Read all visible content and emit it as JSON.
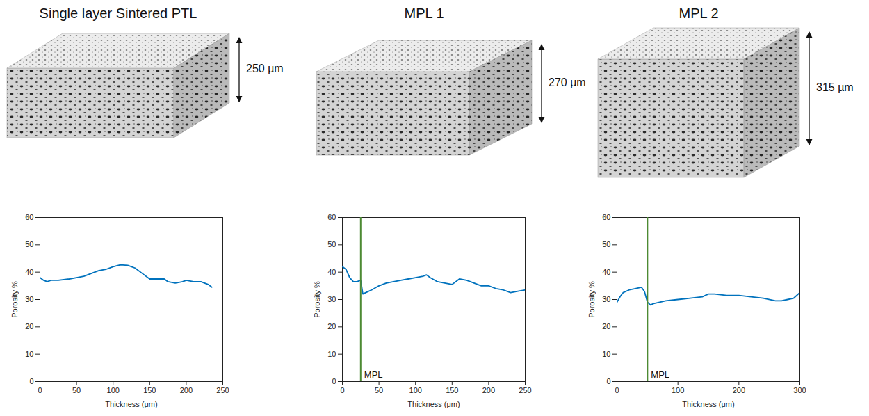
{
  "chart_data": [
    {
      "type": "line",
      "title": "Single layer Sintered PTL",
      "sample_thickness_label": "250 µm",
      "xlabel": "Thickness (μm)",
      "ylabel": "Porosity %",
      "x": [
        0,
        5,
        10,
        15,
        25,
        40,
        50,
        60,
        70,
        80,
        90,
        100,
        110,
        120,
        130,
        140,
        150,
        160,
        170,
        175,
        185,
        195,
        200,
        210,
        220,
        230,
        235
      ],
      "values": [
        38,
        37,
        36.5,
        37,
        37,
        37.5,
        38,
        38.5,
        39.5,
        40.5,
        41,
        42,
        42.7,
        42.5,
        41.5,
        39.5,
        37.5,
        37.5,
        37.5,
        36.5,
        36,
        36.5,
        37,
        36.5,
        36.5,
        35.5,
        34.5
      ],
      "color": "#0072bd",
      "xlim": [
        0,
        250
      ],
      "xticks": [
        0,
        50,
        100,
        150,
        200,
        250
      ],
      "ylim": [
        0,
        60
      ],
      "yticks": [
        0,
        10,
        20,
        30,
        40,
        50,
        60
      ],
      "annotations": []
    },
    {
      "type": "line",
      "title": "MPL 1",
      "sample_thickness_label": "270 µm",
      "xlabel": "Thickness (μm)",
      "ylabel": "Porosity %",
      "x": [
        0,
        5,
        10,
        15,
        20,
        25,
        28,
        32,
        40,
        50,
        60,
        70,
        80,
        90,
        100,
        110,
        115,
        120,
        130,
        140,
        150,
        160,
        170,
        180,
        190,
        200,
        210,
        220,
        230,
        240,
        250
      ],
      "values": [
        42,
        41,
        38,
        36.5,
        36.5,
        37,
        32,
        32.5,
        33.5,
        35,
        36,
        36.5,
        37,
        37.5,
        38,
        38.5,
        39,
        38,
        36.5,
        36,
        35.5,
        37.5,
        37,
        36,
        35,
        35,
        34,
        33.5,
        32.5,
        33,
        33.5
      ],
      "color": "#0072bd",
      "xlim": [
        0,
        250
      ],
      "xticks": [
        0,
        50,
        100,
        150,
        200,
        250
      ],
      "ylim": [
        0,
        60
      ],
      "yticks": [
        0,
        10,
        20,
        30,
        40,
        50,
        60
      ],
      "annotations": [
        {
          "text": "MPL",
          "x": 25,
          "color": "#4d8a33"
        }
      ]
    },
    {
      "type": "line",
      "title": "MPL 2",
      "sample_thickness_label": "315 µm",
      "xlabel": "Thickness (μm)",
      "ylabel": "Porosity %",
      "x": [
        0,
        5,
        10,
        20,
        30,
        40,
        45,
        50,
        55,
        60,
        70,
        80,
        100,
        120,
        140,
        150,
        160,
        180,
        200,
        220,
        240,
        260,
        270,
        280,
        290,
        300
      ],
      "values": [
        29,
        31,
        32.5,
        33.5,
        34,
        34.5,
        33,
        29,
        28,
        28.5,
        29,
        29.5,
        30,
        30.5,
        31,
        32,
        32,
        31.5,
        31.5,
        31,
        30.5,
        29.5,
        29.5,
        30,
        30.5,
        32.5
      ],
      "color": "#0072bd",
      "xlim": [
        0,
        300
      ],
      "xticks": [
        0,
        100,
        200,
        300
      ],
      "ylim": [
        0,
        60
      ],
      "yticks": [
        0,
        10,
        20,
        30,
        40,
        50,
        60
      ],
      "annotations": [
        {
          "text": "MPL",
          "x": 50,
          "color": "#4d8a33"
        }
      ]
    }
  ]
}
